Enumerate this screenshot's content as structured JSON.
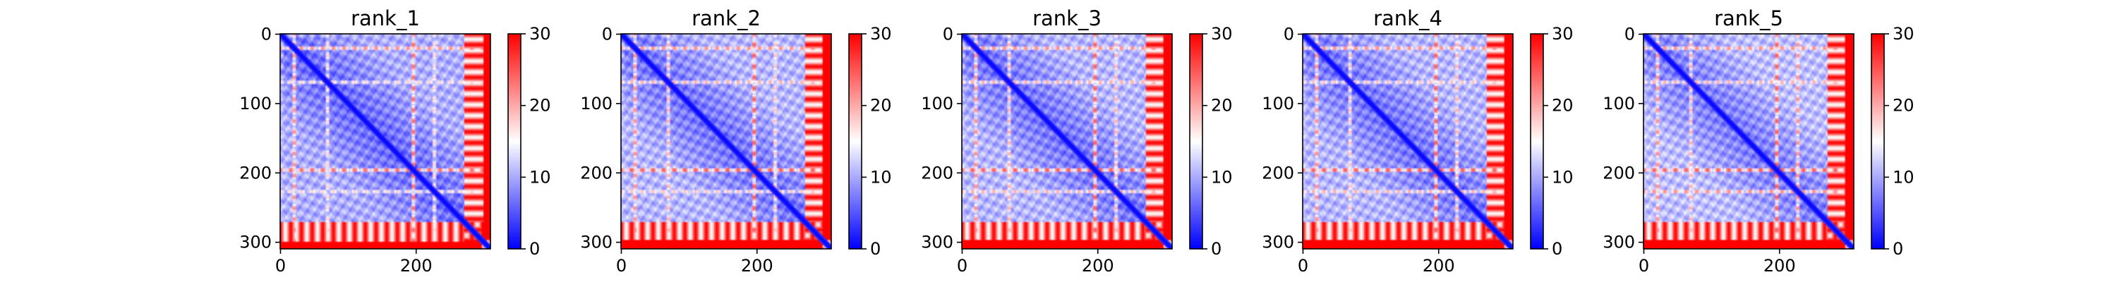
{
  "chart_data": [
    {
      "type": "heatmap",
      "title": "rank_1",
      "matrix_size": 310,
      "xticks": [
        0,
        200
      ],
      "yticks": [
        0,
        100,
        200,
        300
      ],
      "colorbar": {
        "min": 0,
        "max": 30,
        "ticks": [
          0,
          10,
          20,
          30
        ],
        "colormap": "bwr"
      },
      "high_rows": [
        [
          0,
          6,
          12
        ],
        [
          19,
          22,
          22
        ],
        [
          68,
          72,
          18
        ],
        [
          92,
          94,
          17
        ],
        [
          195,
          200,
          24
        ],
        [
          226,
          229,
          18
        ],
        [
          272,
          310,
          30
        ]
      ],
      "high_cols": [
        [
          300,
          310,
          30
        ]
      ],
      "base_level": 6
    },
    {
      "type": "heatmap",
      "title": "rank_2",
      "matrix_size": 310,
      "xticks": [
        0,
        200
      ],
      "yticks": [
        0,
        100,
        200,
        300
      ],
      "colorbar": {
        "min": 0,
        "max": 30,
        "ticks": [
          0,
          10,
          20,
          30
        ],
        "colormap": "bwr"
      },
      "high_rows": [
        [
          0,
          6,
          12
        ],
        [
          19,
          22,
          22
        ],
        [
          68,
          72,
          20
        ],
        [
          92,
          94,
          17
        ],
        [
          195,
          200,
          25
        ],
        [
          226,
          229,
          19
        ],
        [
          272,
          310,
          30
        ]
      ],
      "high_cols": [
        [
          298,
          310,
          30
        ]
      ],
      "base_level": 6.5
    },
    {
      "type": "heatmap",
      "title": "rank_3",
      "matrix_size": 310,
      "xticks": [
        0,
        200
      ],
      "yticks": [
        0,
        100,
        200,
        300
      ],
      "colorbar": {
        "min": 0,
        "max": 30,
        "ticks": [
          0,
          10,
          20,
          30
        ],
        "colormap": "bwr"
      },
      "high_rows": [
        [
          0,
          6,
          12
        ],
        [
          19,
          22,
          22
        ],
        [
          68,
          72,
          20
        ],
        [
          92,
          94,
          17
        ],
        [
          195,
          200,
          25
        ],
        [
          226,
          229,
          20
        ],
        [
          272,
          310,
          30
        ]
      ],
      "high_cols": [
        [
          296,
          310,
          30
        ]
      ],
      "base_level": 6.5
    },
    {
      "type": "heatmap",
      "title": "rank_4",
      "matrix_size": 310,
      "xticks": [
        0,
        200
      ],
      "yticks": [
        0,
        100,
        200,
        300
      ],
      "colorbar": {
        "min": 0,
        "max": 30,
        "ticks": [
          0,
          10,
          20,
          30
        ],
        "colormap": "bwr"
      },
      "high_rows": [
        [
          0,
          6,
          12
        ],
        [
          19,
          22,
          22
        ],
        [
          68,
          72,
          19
        ],
        [
          92,
          94,
          17
        ],
        [
          195,
          200,
          25
        ],
        [
          226,
          229,
          20
        ],
        [
          272,
          310,
          30
        ]
      ],
      "high_cols": [
        [
          296,
          310,
          30
        ]
      ],
      "base_level": 6.5
    },
    {
      "type": "heatmap",
      "title": "rank_5",
      "matrix_size": 310,
      "xticks": [
        0,
        200
      ],
      "yticks": [
        0,
        100,
        200,
        300
      ],
      "colorbar": {
        "min": 0,
        "max": 30,
        "ticks": [
          0,
          10,
          20,
          30
        ],
        "colormap": "bwr"
      },
      "high_rows": [
        [
          0,
          6,
          12
        ],
        [
          19,
          22,
          22
        ],
        [
          68,
          72,
          20
        ],
        [
          92,
          94,
          17
        ],
        [
          195,
          200,
          25
        ],
        [
          226,
          229,
          22
        ],
        [
          272,
          310,
          30
        ]
      ],
      "high_cols": [
        [
          296,
          310,
          30
        ]
      ],
      "base_level": 7
    }
  ]
}
